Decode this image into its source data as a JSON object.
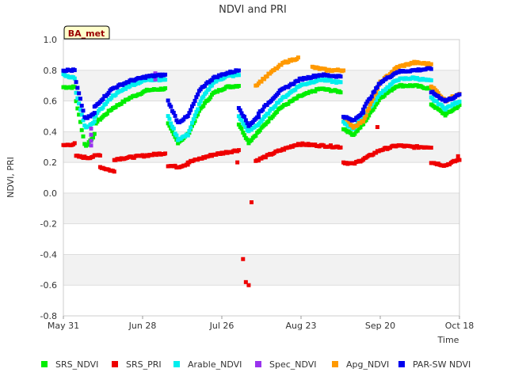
{
  "chart_data": {
    "type": "scatter",
    "title": "NDVI and PRI",
    "xlabel": "Time",
    "ylabel": "NDVI, PRI",
    "site_badge": "BA_met",
    "xlim": [
      0,
      140
    ],
    "ylim": [
      -0.8,
      1.0
    ],
    "x_unit": "days since May 31",
    "x_ticks": [
      {
        "x": 0,
        "label": "May 31"
      },
      {
        "x": 28,
        "label": "Jun 28"
      },
      {
        "x": 56,
        "label": "Jul 26"
      },
      {
        "x": 84,
        "label": "Aug 23"
      },
      {
        "x": 112,
        "label": "Sep 20"
      },
      {
        "x": 140,
        "label": "Oct 18"
      }
    ],
    "y_ticks": [
      {
        "y": 1.0,
        "label": "1.0"
      },
      {
        "y": 0.8,
        "label": "0.8"
      },
      {
        "y": 0.6,
        "label": "0.6"
      },
      {
        "y": 0.4,
        "label": "0.4"
      },
      {
        "y": 0.2,
        "label": "0.2"
      },
      {
        "y": 0.0,
        "label": "0.0"
      },
      {
        "y": -0.2,
        "label": "-0.2"
      },
      {
        "y": -0.4,
        "label": "-0.4"
      },
      {
        "y": -0.6,
        "label": "-0.6"
      },
      {
        "y": -0.8,
        "label": "-0.8"
      }
    ],
    "series": [
      {
        "name": "SRS_NDVI",
        "color": "#00ee00",
        "segments": [
          {
            "x0": 0,
            "x1": 4,
            "y": [
              0.69,
              0.69
            ]
          },
          {
            "x0": 4.5,
            "x1": 11,
            "y": [
              0.6,
              0.3,
              0.38
            ]
          },
          {
            "x0": 11,
            "x1": 36,
            "y": [
              0.45,
              0.55,
              0.62,
              0.67,
              0.68
            ]
          },
          {
            "x0": 37,
            "x1": 44,
            "y": [
              0.45,
              0.33,
              0.38
            ]
          },
          {
            "x0": 44,
            "x1": 62,
            "y": [
              0.38,
              0.55,
              0.65,
              0.69,
              0.7
            ]
          },
          {
            "x0": 62,
            "x1": 69,
            "y": [
              0.45,
              0.33,
              0.4
            ]
          },
          {
            "x0": 69,
            "x1": 98,
            "y": [
              0.4,
              0.55,
              0.63,
              0.68,
              0.66
            ]
          },
          {
            "x0": 99,
            "x1": 106,
            "y": [
              0.42,
              0.38,
              0.45
            ]
          },
          {
            "x0": 106,
            "x1": 130,
            "y": [
              0.45,
              0.62,
              0.7,
              0.7,
              0.68
            ]
          },
          {
            "x0": 130,
            "x1": 140,
            "y": [
              0.58,
              0.51,
              0.57
            ]
          }
        ]
      },
      {
        "name": "SRS_PRI",
        "color": "#ee0000",
        "segments": [
          {
            "x0": 0,
            "x1": 4,
            "y": [
              0.31,
              0.32
            ]
          },
          {
            "x0": 4.5,
            "x1": 13,
            "y": [
              0.24,
              0.23,
              0.25
            ]
          },
          {
            "x0": 13,
            "x1": 18,
            "y": [
              0.17,
              0.14
            ]
          },
          {
            "x0": 18,
            "x1": 36,
            "y": [
              0.22,
              0.24,
              0.26
            ]
          },
          {
            "x0": 37,
            "x1": 44,
            "y": [
              0.18,
              0.17,
              0.19
            ]
          },
          {
            "x0": 44,
            "x1": 62,
            "y": [
              0.2,
              0.25,
              0.28
            ]
          },
          {
            "x0": 68,
            "x1": 98,
            "y": [
              0.21,
              0.27,
              0.32,
              0.31,
              0.3
            ]
          },
          {
            "x0": 99,
            "x1": 106,
            "y": [
              0.2,
              0.19,
              0.22
            ]
          },
          {
            "x0": 106,
            "x1": 130,
            "y": [
              0.22,
              0.28,
              0.31,
              0.3,
              0.3
            ]
          },
          {
            "x0": 130,
            "x1": 140,
            "y": [
              0.2,
              0.18,
              0.22
            ]
          }
        ],
        "extra_points": [
          [
            61.5,
            0.2
          ],
          [
            63.5,
            -0.43
          ],
          [
            64.5,
            -0.58
          ],
          [
            65.5,
            -0.6
          ],
          [
            66.5,
            -0.06
          ],
          [
            111,
            0.43
          ],
          [
            139.5,
            0.24
          ]
        ]
      },
      {
        "name": "Arable_NDVI",
        "color": "#00eeee",
        "segments": [
          {
            "x0": 0,
            "x1": 4,
            "y": [
              0.77,
              0.75
            ]
          },
          {
            "x0": 4.5,
            "x1": 11,
            "y": [
              0.65,
              0.42,
              0.46
            ]
          },
          {
            "x0": 11,
            "x1": 36,
            "y": [
              0.5,
              0.63,
              0.7,
              0.74,
              0.74
            ]
          },
          {
            "x0": 37,
            "x1": 44,
            "y": [
              0.5,
              0.35,
              0.38
            ]
          },
          {
            "x0": 44,
            "x1": 62,
            "y": [
              0.38,
              0.6,
              0.72,
              0.76,
              0.77
            ]
          },
          {
            "x0": 62,
            "x1": 69,
            "y": [
              0.5,
              0.4,
              0.45
            ]
          },
          {
            "x0": 69,
            "x1": 98,
            "y": [
              0.45,
              0.6,
              0.7,
              0.74,
              0.72
            ]
          },
          {
            "x0": 99,
            "x1": 106,
            "y": [
              0.46,
              0.42,
              0.5
            ]
          },
          {
            "x0": 106,
            "x1": 130,
            "y": [
              0.5,
              0.65,
              0.74,
              0.75,
              0.73
            ]
          },
          {
            "x0": 130,
            "x1": 140,
            "y": [
              0.62,
              0.55,
              0.6
            ]
          }
        ]
      },
      {
        "name": "Spec_NDVI",
        "color": "#9933ee",
        "segments": [],
        "extra_points": [
          [
            9.8,
            0.42
          ],
          [
            9.8,
            0.38
          ],
          [
            9.8,
            0.34
          ],
          [
            9.8,
            0.31
          ],
          [
            32.5,
            0.78
          ],
          [
            32.5,
            0.76
          ],
          [
            32.5,
            0.74
          ]
        ]
      },
      {
        "name": "Apg_NDVI",
        "color": "#ff9900",
        "segments": [
          {
            "x0": 68,
            "x1": 83,
            "y": [
              0.7,
              0.78,
              0.85,
              0.88
            ]
          },
          {
            "x0": 88,
            "x1": 99,
            "y": [
              0.82,
              0.8,
              0.8
            ]
          },
          {
            "x0": 99,
            "x1": 106,
            "y": [
              0.5,
              0.43,
              0.47
            ]
          },
          {
            "x0": 106,
            "x1": 130,
            "y": [
              0.47,
              0.72,
              0.82,
              0.85,
              0.84
            ]
          },
          {
            "x0": 130,
            "x1": 140,
            "y": [
              0.7,
              0.6,
              0.65
            ]
          }
        ]
      },
      {
        "name": "PAR-SW NDVI",
        "color": "#0000ee",
        "segments": [
          {
            "x0": 0,
            "x1": 4,
            "y": [
              0.8,
              0.8
            ]
          },
          {
            "x0": 4.5,
            "x1": 11,
            "y": [
              0.72,
              0.48,
              0.52
            ]
          },
          {
            "x0": 11,
            "x1": 36,
            "y": [
              0.56,
              0.68,
              0.73,
              0.76,
              0.77
            ]
          },
          {
            "x0": 37,
            "x1": 44,
            "y": [
              0.6,
              0.46,
              0.5
            ]
          },
          {
            "x0": 44,
            "x1": 62,
            "y": [
              0.5,
              0.68,
              0.75,
              0.78,
              0.8
            ]
          },
          {
            "x0": 62,
            "x1": 69,
            "y": [
              0.56,
              0.44,
              0.5
            ]
          },
          {
            "x0": 69,
            "x1": 98,
            "y": [
              0.52,
              0.66,
              0.74,
              0.77,
              0.76
            ]
          },
          {
            "x0": 99,
            "x1": 106,
            "y": [
              0.5,
              0.47,
              0.53
            ]
          },
          {
            "x0": 106,
            "x1": 130,
            "y": [
              0.55,
              0.72,
              0.79,
              0.8,
              0.81
            ]
          },
          {
            "x0": 130,
            "x1": 140,
            "y": [
              0.66,
              0.6,
              0.64
            ]
          }
        ]
      }
    ]
  }
}
